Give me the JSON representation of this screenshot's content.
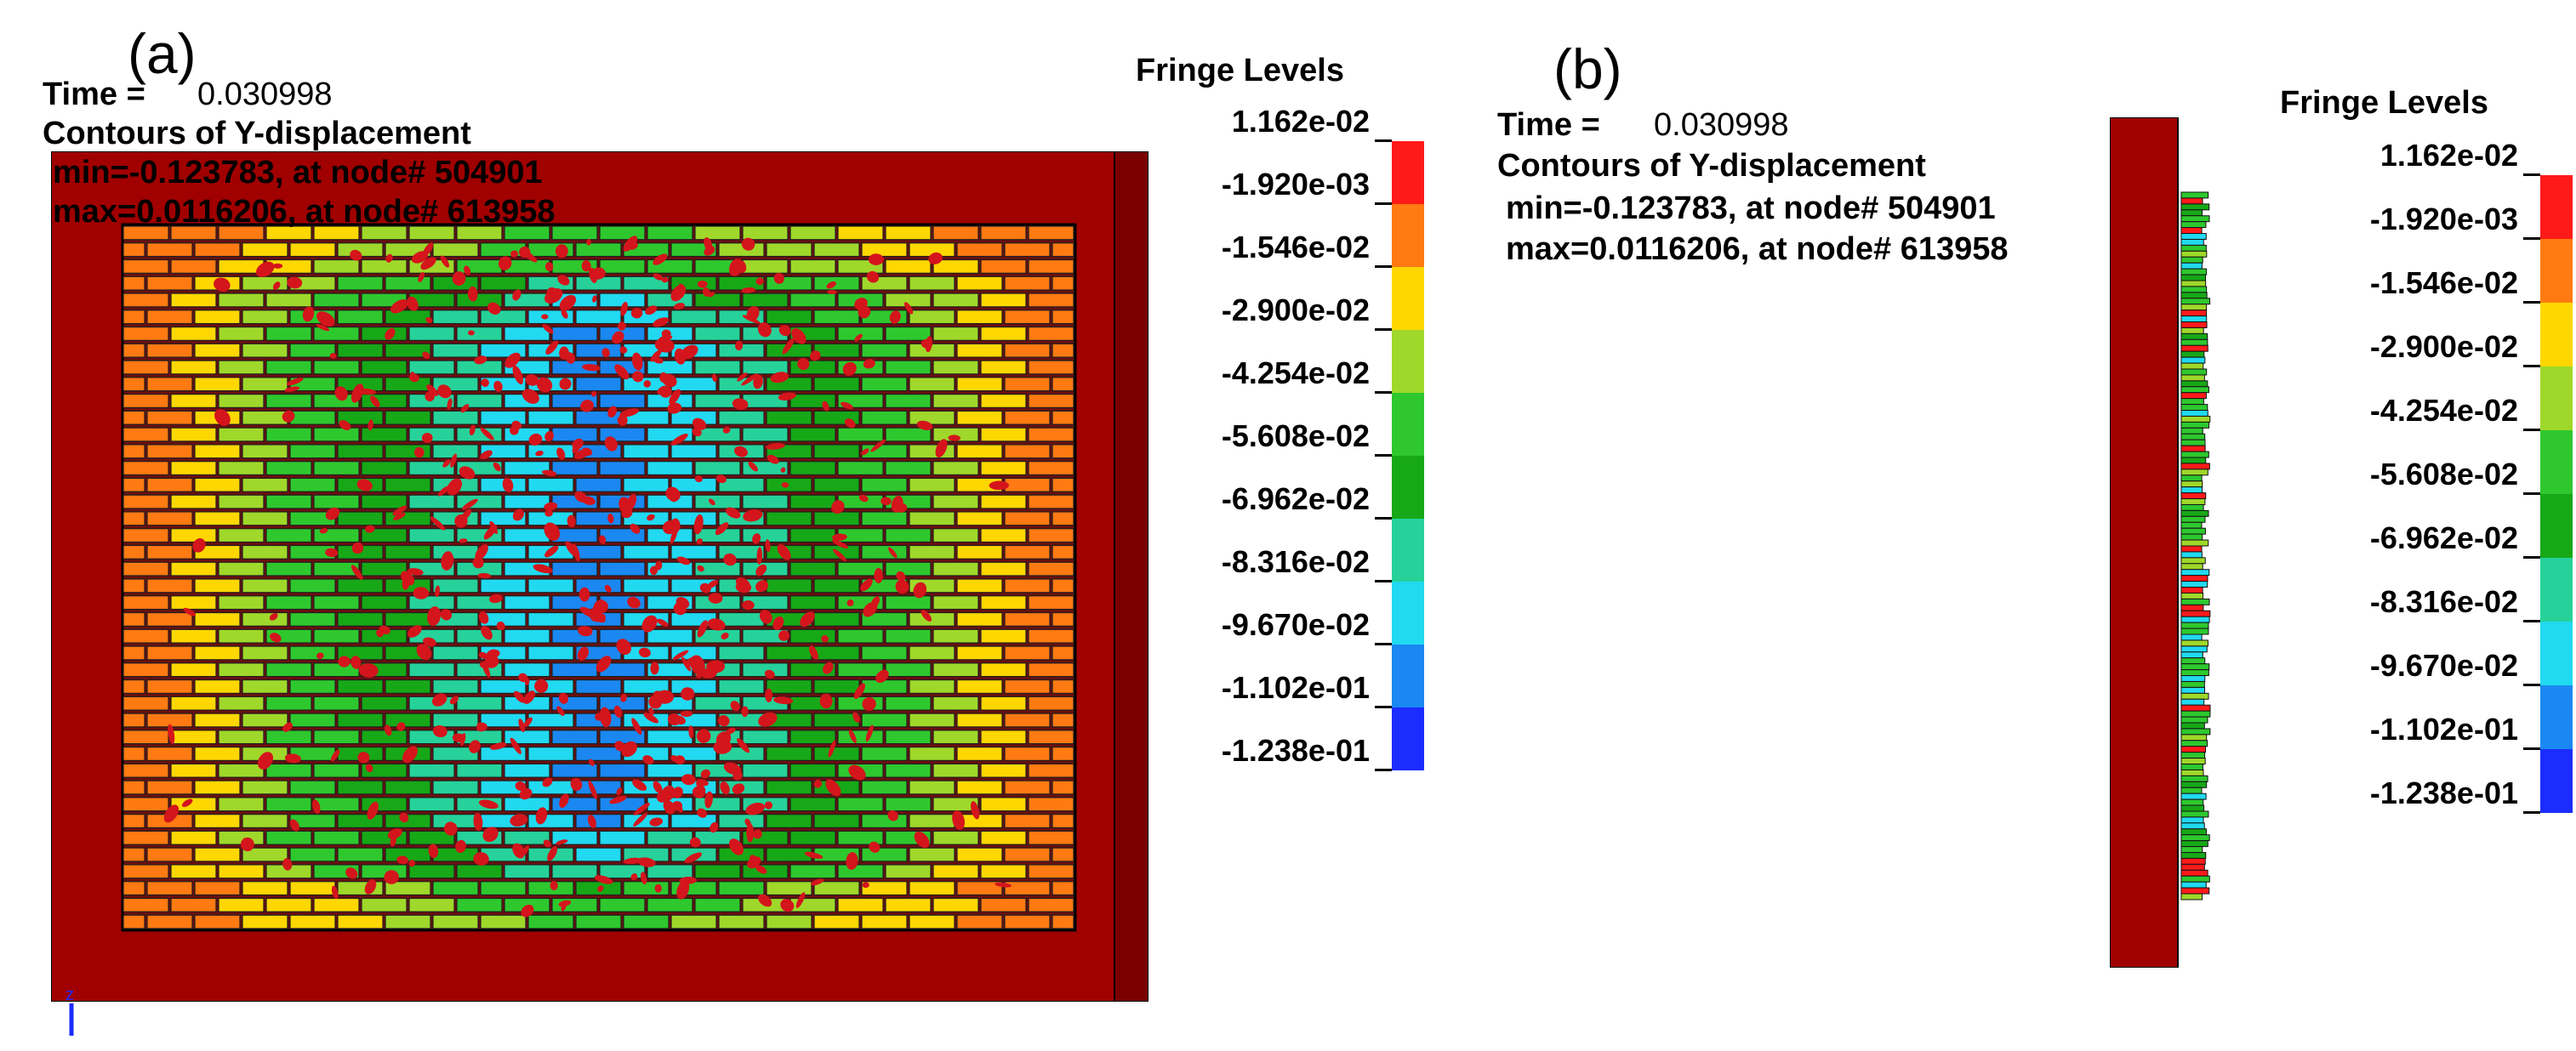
{
  "panel_a": {
    "letter": "(a)",
    "time_label": "Time =",
    "time_value": "0.030998",
    "contour_label": "Contours of Y-displacement",
    "min_line": "min=-0.123783, at node# 504901",
    "max_line": "max=0.0116206, at node# 613958"
  },
  "panel_b": {
    "letter": "(b)",
    "time_label": "Time =",
    "time_value": "0.030998",
    "contour_label": "Contours of Y-displacement",
    "min_line": "min=-0.123783, at node# 504901",
    "max_line": "max=0.0116206, at node# 613958"
  },
  "legend": {
    "title": "Fringe Levels",
    "levels": [
      "1.162e-02",
      "-1.920e-03",
      "-1.546e-02",
      "-2.900e-02",
      "-4.254e-02",
      "-5.608e-02",
      "-6.962e-02",
      "-8.316e-02",
      "-9.670e-02",
      "-1.102e-01",
      "-1.238e-01"
    ],
    "colors": [
      "#ff1a1a",
      "#ff7a12",
      "#ffd700",
      "#9fd82a",
      "#2ec82e",
      "#17a817",
      "#26d29a",
      "#21d9f0",
      "#1a88f0",
      "#1b2cff"
    ]
  },
  "colors": {
    "frame": "#a00000",
    "frame_dark": "#7a0000",
    "crack": "#d4151c",
    "mortar": "#2a2a2a"
  }
}
